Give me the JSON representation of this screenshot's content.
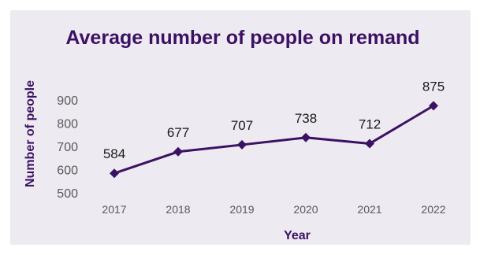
{
  "chart_data": {
    "type": "line",
    "title": "Average number of people on remand",
    "xlabel": "Year",
    "ylabel": "Number of people",
    "categories": [
      "2017",
      "2018",
      "2019",
      "2020",
      "2021",
      "2022"
    ],
    "series": [
      {
        "values": [
          584,
          677,
          707,
          738,
          712,
          875
        ]
      }
    ],
    "data_labels": [
      "584",
      "677",
      "707",
      "738",
      "712",
      "875"
    ],
    "ylim": [
      500,
      900
    ],
    "yticks": [
      "500",
      "600",
      "700",
      "800",
      "900"
    ],
    "grid": false,
    "marker": "diamond",
    "colors": {
      "line": "#3b1164",
      "title": "#3b1164",
      "axis_title": "#3b1164",
      "tick_text": "#595959",
      "label_text": "#1a1a1a",
      "background": "#eeeaf1"
    }
  }
}
